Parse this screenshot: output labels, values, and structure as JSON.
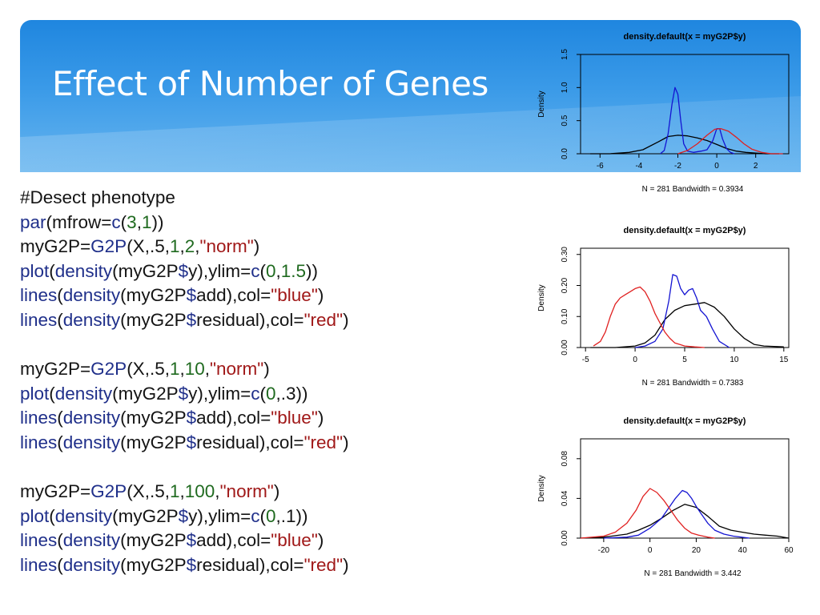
{
  "slide": {
    "title": "Effect of Number of Genes"
  },
  "code_lines": [
    [
      {
        "t": "#Desect phenotype",
        "c": "plain"
      }
    ],
    [
      {
        "t": "par",
        "c": "fn"
      },
      {
        "t": "(mfrow=",
        "c": "plain"
      },
      {
        "t": "c",
        "c": "fn"
      },
      {
        "t": "(",
        "c": "plain"
      },
      {
        "t": "3",
        "c": "num"
      },
      {
        "t": ",",
        "c": "plain"
      },
      {
        "t": "1",
        "c": "num"
      },
      {
        "t": "))",
        "c": "plain"
      }
    ],
    [
      {
        "t": "myG2P=",
        "c": "plain"
      },
      {
        "t": "G2P",
        "c": "fn"
      },
      {
        "t": "(X,.5,",
        "c": "plain"
      },
      {
        "t": "1",
        "c": "num"
      },
      {
        "t": ",",
        "c": "plain"
      },
      {
        "t": "2",
        "c": "num"
      },
      {
        "t": ",",
        "c": "plain"
      },
      {
        "t": "\"norm\"",
        "c": "str"
      },
      {
        "t": ")",
        "c": "plain"
      }
    ],
    [
      {
        "t": "plot",
        "c": "fn"
      },
      {
        "t": "(",
        "c": "plain"
      },
      {
        "t": "density",
        "c": "fn"
      },
      {
        "t": "(myG2P",
        "c": "plain"
      },
      {
        "t": "$",
        "c": "fn"
      },
      {
        "t": "y),ylim=",
        "c": "plain"
      },
      {
        "t": "c",
        "c": "fn"
      },
      {
        "t": "(",
        "c": "plain"
      },
      {
        "t": "0",
        "c": "num"
      },
      {
        "t": ",",
        "c": "plain"
      },
      {
        "t": "1.5",
        "c": "num"
      },
      {
        "t": "))",
        "c": "plain"
      }
    ],
    [
      {
        "t": "lines",
        "c": "fn"
      },
      {
        "t": "(",
        "c": "plain"
      },
      {
        "t": "density",
        "c": "fn"
      },
      {
        "t": "(myG2P",
        "c": "plain"
      },
      {
        "t": "$",
        "c": "fn"
      },
      {
        "t": "add),col=",
        "c": "plain"
      },
      {
        "t": "\"blue\"",
        "c": "str"
      },
      {
        "t": ")",
        "c": "plain"
      }
    ],
    [
      {
        "t": "lines",
        "c": "fn"
      },
      {
        "t": "(",
        "c": "plain"
      },
      {
        "t": "density",
        "c": "fn"
      },
      {
        "t": "(myG2P",
        "c": "plain"
      },
      {
        "t": "$",
        "c": "fn"
      },
      {
        "t": "residual),col=",
        "c": "plain"
      },
      {
        "t": "\"red\"",
        "c": "str"
      },
      {
        "t": ")",
        "c": "plain"
      }
    ],
    [],
    [
      {
        "t": "myG2P=",
        "c": "plain"
      },
      {
        "t": "G2P",
        "c": "fn"
      },
      {
        "t": "(X,.5,",
        "c": "plain"
      },
      {
        "t": "1",
        "c": "num"
      },
      {
        "t": ",",
        "c": "plain"
      },
      {
        "t": "10",
        "c": "num"
      },
      {
        "t": ",",
        "c": "plain"
      },
      {
        "t": "\"norm\"",
        "c": "str"
      },
      {
        "t": ")",
        "c": "plain"
      }
    ],
    [
      {
        "t": "plot",
        "c": "fn"
      },
      {
        "t": "(",
        "c": "plain"
      },
      {
        "t": "density",
        "c": "fn"
      },
      {
        "t": "(myG2P",
        "c": "plain"
      },
      {
        "t": "$",
        "c": "fn"
      },
      {
        "t": "y),ylim=",
        "c": "plain"
      },
      {
        "t": "c",
        "c": "fn"
      },
      {
        "t": "(",
        "c": "plain"
      },
      {
        "t": "0",
        "c": "num"
      },
      {
        "t": ",.3))",
        "c": "plain"
      }
    ],
    [
      {
        "t": "lines",
        "c": "fn"
      },
      {
        "t": "(",
        "c": "plain"
      },
      {
        "t": "density",
        "c": "fn"
      },
      {
        "t": "(myG2P",
        "c": "plain"
      },
      {
        "t": "$",
        "c": "fn"
      },
      {
        "t": "add),col=",
        "c": "plain"
      },
      {
        "t": "\"blue\"",
        "c": "str"
      },
      {
        "t": ")",
        "c": "plain"
      }
    ],
    [
      {
        "t": "lines",
        "c": "fn"
      },
      {
        "t": "(",
        "c": "plain"
      },
      {
        "t": "density",
        "c": "fn"
      },
      {
        "t": "(myG2P",
        "c": "plain"
      },
      {
        "t": "$",
        "c": "fn"
      },
      {
        "t": "residual),col=",
        "c": "plain"
      },
      {
        "t": "\"red\"",
        "c": "str"
      },
      {
        "t": ")",
        "c": "plain"
      }
    ],
    [],
    [
      {
        "t": "myG2P=",
        "c": "plain"
      },
      {
        "t": "G2P",
        "c": "fn"
      },
      {
        "t": "(X,.5,",
        "c": "plain"
      },
      {
        "t": "1",
        "c": "num"
      },
      {
        "t": ",",
        "c": "plain"
      },
      {
        "t": "100",
        "c": "num"
      },
      {
        "t": ",",
        "c": "plain"
      },
      {
        "t": "\"norm\"",
        "c": "str"
      },
      {
        "t": ")",
        "c": "plain"
      }
    ],
    [
      {
        "t": "plot",
        "c": "fn"
      },
      {
        "t": "(",
        "c": "plain"
      },
      {
        "t": "density",
        "c": "fn"
      },
      {
        "t": "(myG2P",
        "c": "plain"
      },
      {
        "t": "$",
        "c": "fn"
      },
      {
        "t": "y),ylim=",
        "c": "plain"
      },
      {
        "t": "c",
        "c": "fn"
      },
      {
        "t": "(",
        "c": "plain"
      },
      {
        "t": "0",
        "c": "num"
      },
      {
        "t": ",.1))",
        "c": "plain"
      }
    ],
    [
      {
        "t": "lines",
        "c": "fn"
      },
      {
        "t": "(",
        "c": "plain"
      },
      {
        "t": "density",
        "c": "fn"
      },
      {
        "t": "(myG2P",
        "c": "plain"
      },
      {
        "t": "$",
        "c": "fn"
      },
      {
        "t": "add),col=",
        "c": "plain"
      },
      {
        "t": "\"blue\"",
        "c": "str"
      },
      {
        "t": ")",
        "c": "plain"
      }
    ],
    [
      {
        "t": "lines",
        "c": "fn"
      },
      {
        "t": "(",
        "c": "plain"
      },
      {
        "t": "density",
        "c": "fn"
      },
      {
        "t": "(myG2P",
        "c": "plain"
      },
      {
        "t": "$",
        "c": "fn"
      },
      {
        "t": "residual),col=",
        "c": "plain"
      },
      {
        "t": "\"red\"",
        "c": "str"
      },
      {
        "t": ")",
        "c": "plain"
      }
    ]
  ],
  "colors": {
    "code_fn": "#1f2f8a",
    "code_str": "#a01818",
    "code_num": "#1f6a1f",
    "header": "#1f86df"
  },
  "chart_data": [
    {
      "type": "line",
      "title": "density.default(x = myG2P$y)",
      "subtitle": "N = 281   Bandwidth = 0.3934",
      "ylabel": "Density",
      "xlim": [
        -7,
        3.7
      ],
      "ylim": [
        0,
        1.5
      ],
      "xticks": [
        "-6",
        "-4",
        "-2",
        "0",
        "2"
      ],
      "yticks": [
        "0.0",
        "0.5",
        "1.0",
        "1.5"
      ],
      "series": [
        {
          "color": "#000000",
          "x": [
            -6.5,
            -5.5,
            -4.5,
            -3.8,
            -3,
            -2.5,
            -2,
            -1.5,
            -1,
            -0.5,
            0,
            0.5,
            1,
            1.5,
            2,
            2.5,
            3.2
          ],
          "y": [
            0.0,
            0.0,
            0.02,
            0.06,
            0.18,
            0.26,
            0.28,
            0.27,
            0.24,
            0.2,
            0.14,
            0.08,
            0.04,
            0.02,
            0.01,
            0.0,
            0.0
          ]
        },
        {
          "color": "#1414d2",
          "x": [
            -2.9,
            -2.7,
            -2.5,
            -2.3,
            -2.15,
            -2.0,
            -1.85,
            -1.7,
            -1.5,
            -1.2,
            -0.8,
            -0.5,
            -0.2,
            0.0,
            0.15,
            0.3,
            0.5,
            0.7,
            0.9
          ],
          "y": [
            0.0,
            0.05,
            0.3,
            0.75,
            1.0,
            0.9,
            0.5,
            0.15,
            0.04,
            0.02,
            0.04,
            0.06,
            0.2,
            0.38,
            0.38,
            0.22,
            0.08,
            0.02,
            0.0
          ]
        },
        {
          "color": "#e02020",
          "x": [
            -2.0,
            -1.5,
            -1.0,
            -0.5,
            -0.1,
            0.2,
            0.6,
            1.0,
            1.4,
            1.8,
            2.3,
            2.8,
            3.4
          ],
          "y": [
            0.0,
            0.05,
            0.15,
            0.28,
            0.37,
            0.38,
            0.34,
            0.25,
            0.15,
            0.07,
            0.02,
            0.0,
            0.0
          ]
        }
      ]
    },
    {
      "type": "line",
      "title": "density.default(x = myG2P$y)",
      "subtitle": "N = 281   Bandwidth = 0.7383",
      "ylabel": "Density",
      "xlim": [
        -5.5,
        15.5
      ],
      "ylim": [
        0,
        0.32
      ],
      "xticks": [
        "-5",
        "0",
        "5",
        "10",
        "15"
      ],
      "yticks": [
        "0.00",
        "0.10",
        "0.20",
        "0.30"
      ],
      "series": [
        {
          "color": "#000000",
          "x": [
            -4.5,
            -2,
            0,
            1,
            2,
            3,
            4,
            5,
            6,
            7,
            8,
            9,
            10,
            11,
            12,
            13,
            15
          ],
          "y": [
            0.0,
            0.0,
            0.005,
            0.015,
            0.04,
            0.09,
            0.12,
            0.135,
            0.14,
            0.145,
            0.13,
            0.1,
            0.06,
            0.03,
            0.01,
            0.005,
            0.002
          ]
        },
        {
          "color": "#1414d2",
          "x": [
            0,
            1,
            2,
            2.8,
            3.4,
            3.8,
            4.2,
            4.6,
            5.0,
            5.4,
            5.8,
            6.2,
            6.6,
            7.2,
            7.8,
            8.5,
            9.5
          ],
          "y": [
            0.0,
            0.005,
            0.02,
            0.06,
            0.15,
            0.235,
            0.23,
            0.19,
            0.17,
            0.185,
            0.19,
            0.16,
            0.12,
            0.1,
            0.06,
            0.02,
            0.0
          ]
        },
        {
          "color": "#e02020",
          "x": [
            -4.2,
            -3.5,
            -3,
            -2.5,
            -2,
            -1.5,
            -1,
            -0.5,
            0,
            0.5,
            1,
            1.5,
            2,
            2.5,
            3,
            3.5,
            4,
            4.5,
            5,
            6,
            7
          ],
          "y": [
            0.005,
            0.02,
            0.05,
            0.1,
            0.14,
            0.16,
            0.17,
            0.18,
            0.19,
            0.195,
            0.18,
            0.15,
            0.11,
            0.08,
            0.05,
            0.03,
            0.015,
            0.01,
            0.005,
            0.002,
            0.0
          ]
        }
      ]
    },
    {
      "type": "line",
      "title": "density.default(x = myG2P$y)",
      "subtitle": "N = 281   Bandwidth = 3.442",
      "ylabel": "Density",
      "xlim": [
        -30,
        60
      ],
      "ylim": [
        0,
        0.1
      ],
      "xticks": [
        "-20",
        "0",
        "20",
        "40",
        "60"
      ],
      "yticks": [
        "0.00",
        "0.04",
        "0.08"
      ],
      "series": [
        {
          "color": "#000000",
          "x": [
            -30,
            -20,
            -10,
            -5,
            0,
            5,
            10,
            15,
            20,
            25,
            30,
            35,
            40,
            45,
            50,
            55,
            60
          ],
          "y": [
            0.0,
            0.001,
            0.004,
            0.008,
            0.013,
            0.02,
            0.028,
            0.034,
            0.031,
            0.022,
            0.012,
            0.008,
            0.006,
            0.004,
            0.003,
            0.002,
            0.0
          ]
        },
        {
          "color": "#1414d2",
          "x": [
            -20,
            -10,
            -5,
            0,
            5,
            8,
            11,
            14,
            16,
            18,
            20,
            22,
            25,
            28,
            32,
            36,
            43
          ],
          "y": [
            0.0,
            0.001,
            0.003,
            0.01,
            0.02,
            0.03,
            0.04,
            0.048,
            0.046,
            0.04,
            0.032,
            0.025,
            0.015,
            0.008,
            0.004,
            0.002,
            0.0
          ]
        },
        {
          "color": "#e02020",
          "x": [
            -30,
            -20,
            -15,
            -10,
            -6,
            -3,
            0,
            3,
            6,
            9,
            12,
            15,
            18,
            21,
            25,
            28
          ],
          "y": [
            0.0,
            0.002,
            0.006,
            0.015,
            0.028,
            0.042,
            0.05,
            0.046,
            0.038,
            0.028,
            0.018,
            0.01,
            0.005,
            0.003,
            0.001,
            0.0
          ]
        }
      ]
    }
  ]
}
